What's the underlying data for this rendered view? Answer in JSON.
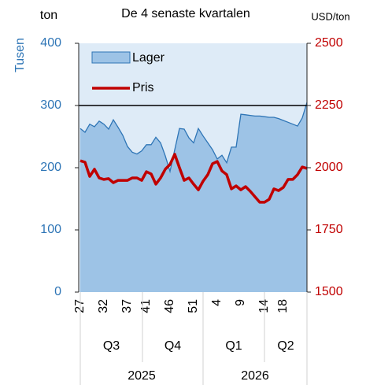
{
  "chart_data": {
    "type": "area_line",
    "title": "De 4 senaste kvartalen",
    "y_unit": "ton",
    "y_label": "Tusen",
    "y2_unit": "USD/ton",
    "categories": [
      "27",
      null,
      null,
      null,
      null,
      "32",
      null,
      null,
      null,
      null,
      "37",
      null,
      null,
      null,
      "41",
      null,
      null,
      null,
      null,
      "46",
      null,
      null,
      null,
      null,
      "51",
      null,
      null,
      null,
      null,
      "4",
      null,
      null,
      null,
      null,
      "9",
      null,
      null,
      null,
      null,
      "14",
      null,
      null,
      null,
      "18",
      null,
      null,
      null,
      null,
      null
    ],
    "quarters": [
      "Q3",
      "Q4",
      "Q1",
      "Q2"
    ],
    "years": [
      "2025",
      "2026"
    ],
    "series": [
      {
        "name": "Lager",
        "color": "#9dc3e6",
        "line_color": "#2e75b6",
        "values": [
          263,
          257,
          270,
          266,
          275,
          270,
          262,
          277,
          265,
          252,
          234,
          225,
          222,
          227,
          237,
          237,
          249,
          240,
          219,
          194,
          229,
          263,
          262,
          248,
          240,
          263,
          251,
          240,
          229,
          214,
          220,
          208,
          233,
          233,
          286,
          285,
          284,
          283,
          283,
          282,
          281,
          281,
          279,
          276,
          273,
          270,
          267,
          280,
          305
        ]
      },
      {
        "name": "Pris",
        "color": "#c00000",
        "axis": "y2",
        "values": [
          2028,
          2022,
          1965,
          1994,
          1959,
          1953,
          1956,
          1940,
          1949,
          1949,
          1949,
          1959,
          1959,
          1949,
          1984,
          1975,
          1934,
          1959,
          1994,
          2013,
          2054,
          2000,
          1949,
          1959,
          1934,
          1911,
          1946,
          1972,
          2016,
          2025,
          1987,
          1972,
          1915,
          1927,
          1911,
          1924,
          1905,
          1883,
          1861,
          1861,
          1873,
          1915,
          1908,
          1921,
          1953,
          1953,
          1972,
          2003,
          1997
        ]
      }
    ],
    "ylim": [
      0,
      400
    ],
    "yticks": [
      0,
      100,
      200,
      300,
      400
    ],
    "y2lim": [
      1500,
      2500
    ],
    "y2ticks": [
      1500,
      1750,
      2000,
      2250,
      2500
    ],
    "hline": 300,
    "background": "#deebf7",
    "legend": "top-left"
  }
}
